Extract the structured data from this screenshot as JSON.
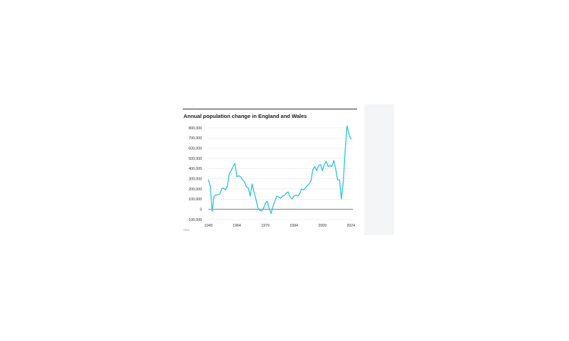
{
  "page": {
    "top_mark": "·",
    "source_note": "ONS"
  },
  "colors": {
    "line": "#2ec4d8",
    "grid": "#e6e6e6",
    "zero_line": "#333333",
    "title": "#1a1a1a",
    "tick_text": "#333333",
    "side_panel": "#f4f5f6"
  },
  "chart_data": {
    "type": "line",
    "title": "Annual population change in England and Wales",
    "xlabel": "",
    "ylabel": "",
    "xlim": [
      1949,
      2025
    ],
    "ylim": [
      -100000,
      800000
    ],
    "x_ticks": [
      "1949",
      "1964",
      "1979",
      "1994",
      "2009",
      "2024"
    ],
    "y_ticks": [
      "800,000",
      "700,000",
      "600,000",
      "500,000",
      "400,000",
      "300,000",
      "200,000",
      "100,000",
      "0",
      "-100,000"
    ],
    "grid": true,
    "legend": "none",
    "series": [
      {
        "x": [
          1949,
          1950,
          1951,
          1952,
          1953,
          1954,
          1955,
          1956,
          1957,
          1958,
          1959,
          1960,
          1961,
          1962,
          1963,
          1964,
          1965,
          1966,
          1967,
          1968,
          1969,
          1970,
          1971,
          1972,
          1973,
          1974,
          1975,
          1976,
          1977,
          1978,
          1979,
          1980,
          1981,
          1982,
          1983,
          1984,
          1985,
          1986,
          1987,
          1988,
          1989,
          1990,
          1991,
          1992,
          1993,
          1994,
          1995,
          1996,
          1997,
          1998,
          1999,
          2000,
          2001,
          2002,
          2003,
          2004,
          2005,
          2006,
          2007,
          2008,
          2009,
          2010,
          2011,
          2012,
          2013,
          2014,
          2015,
          2016,
          2017,
          2018,
          2019,
          2020,
          2021,
          2022,
          2023,
          2024
        ],
        "values": [
          290000,
          230000,
          -20000,
          130000,
          140000,
          145000,
          150000,
          200000,
          210000,
          190000,
          230000,
          350000,
          380000,
          420000,
          450000,
          320000,
          330000,
          320000,
          290000,
          270000,
          220000,
          210000,
          130000,
          250000,
          170000,
          100000,
          20000,
          -10000,
          -15000,
          10000,
          60000,
          80000,
          10000,
          -40000,
          30000,
          80000,
          130000,
          120000,
          110000,
          130000,
          135000,
          160000,
          170000,
          120000,
          100000,
          130000,
          140000,
          130000,
          150000,
          200000,
          190000,
          210000,
          230000,
          250000,
          280000,
          390000,
          420000,
          380000,
          430000,
          440000,
          380000,
          440000,
          470000,
          420000,
          430000,
          420000,
          480000,
          400000,
          290000,
          290000,
          100000,
          270000,
          580000,
          820000,
          740000,
          690000
        ]
      }
    ]
  }
}
